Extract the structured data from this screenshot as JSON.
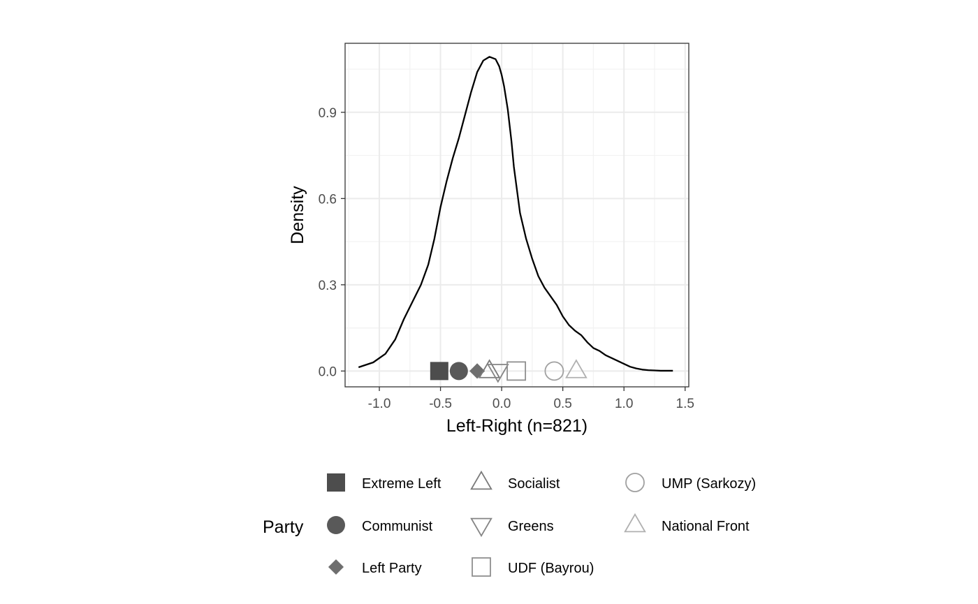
{
  "chart_data": {
    "type": "line",
    "xlabel": "Left-Right (n=821)",
    "ylabel": "Density",
    "xlim": [
      -1.28,
      1.53
    ],
    "ylim": [
      -0.055,
      1.14
    ],
    "x_ticks": [
      "-1.0",
      "-0.5",
      "0.0",
      "0.5",
      "1.0",
      "1.5"
    ],
    "x_tick_values": [
      -1.0,
      -0.5,
      0.0,
      0.5,
      1.0,
      1.5
    ],
    "y_ticks": [
      "0.0",
      "0.3",
      "0.6",
      "0.9"
    ],
    "y_tick_values": [
      0.0,
      0.3,
      0.6,
      0.9
    ],
    "grid": true,
    "legend_position": "bottom",
    "density_curve": {
      "color": "#000000",
      "x": [
        -1.17,
        -1.05,
        -0.95,
        -0.87,
        -0.8,
        -0.73,
        -0.66,
        -0.6,
        -0.55,
        -0.5,
        -0.45,
        -0.4,
        -0.35,
        -0.3,
        -0.25,
        -0.2,
        -0.15,
        -0.1,
        -0.05,
        -0.02,
        0.0,
        0.02,
        0.05,
        0.08,
        0.1,
        0.15,
        0.2,
        0.25,
        0.3,
        0.35,
        0.4,
        0.45,
        0.5,
        0.55,
        0.6,
        0.65,
        0.7,
        0.75,
        0.8,
        0.85,
        0.9,
        0.95,
        1.0,
        1.05,
        1.1,
        1.15,
        1.2,
        1.25,
        1.3,
        1.35,
        1.4
      ],
      "y": [
        0.013,
        0.03,
        0.06,
        0.11,
        0.18,
        0.24,
        0.3,
        0.37,
        0.46,
        0.57,
        0.66,
        0.74,
        0.81,
        0.89,
        0.97,
        1.04,
        1.08,
        1.093,
        1.085,
        1.06,
        1.03,
        0.99,
        0.91,
        0.8,
        0.71,
        0.55,
        0.46,
        0.39,
        0.33,
        0.29,
        0.26,
        0.23,
        0.19,
        0.16,
        0.14,
        0.125,
        0.1,
        0.08,
        0.07,
        0.055,
        0.045,
        0.035,
        0.025,
        0.015,
        0.009,
        0.005,
        0.003,
        0.002,
        0.001,
        0.001,
        0.001
      ]
    },
    "series": [
      {
        "name": "Extreme Left",
        "x": -0.51,
        "y": 0.0,
        "shape": "square-filled",
        "color": "#4d4d4d"
      },
      {
        "name": "Communist",
        "x": -0.35,
        "y": 0.0,
        "shape": "circle-filled",
        "color": "#595959"
      },
      {
        "name": "Left Party",
        "x": -0.2,
        "y": 0.0,
        "shape": "diamond-filled",
        "color": "#6e6e6e"
      },
      {
        "name": "Socialist",
        "x": -0.1,
        "y": 0.0,
        "shape": "triangle-open",
        "color": "#7a7a7a"
      },
      {
        "name": "Greens",
        "x": -0.03,
        "y": 0.0,
        "shape": "triangle-down-open",
        "color": "#858585"
      },
      {
        "name": "UDF (Bayrou)",
        "x": 0.12,
        "y": 0.0,
        "shape": "square-open",
        "color": "#8f8f8f"
      },
      {
        "name": "UMP (Sarkozy)",
        "x": 0.43,
        "y": 0.0,
        "shape": "circle-open",
        "color": "#a0a0a0"
      },
      {
        "name": "National Front",
        "x": 0.61,
        "y": 0.0,
        "shape": "triangle-open",
        "color": "#b0b0b0"
      }
    ],
    "legend_title": "Party"
  }
}
